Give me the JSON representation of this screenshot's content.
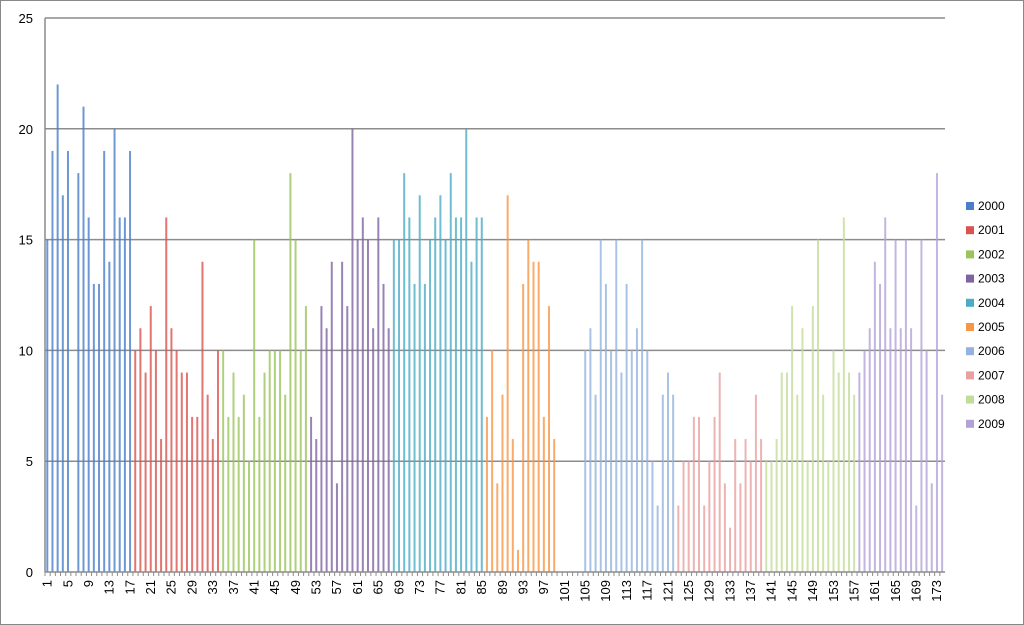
{
  "chart_data": {
    "type": "bar",
    "title": "",
    "xlabel": "",
    "ylabel": "",
    "ylim": [
      0,
      25
    ],
    "yticks": [
      0,
      5,
      10,
      15,
      20,
      25
    ],
    "x_range": [
      1,
      174
    ],
    "x_tick_step": 4,
    "grid": true,
    "legend": "right",
    "series": [
      {
        "name": "2000",
        "color": "#4a7ec9",
        "start": 1,
        "values": [
          15,
          19,
          22,
          17,
          19,
          0,
          18,
          21,
          16,
          13,
          13,
          19,
          14,
          20,
          16,
          16,
          19
        ]
      },
      {
        "name": "2001",
        "color": "#d9534f",
        "start": 18,
        "values": [
          10,
          11,
          9,
          12,
          10,
          6,
          16,
          11,
          10,
          9,
          9,
          7,
          7,
          14,
          8,
          6,
          10
        ]
      },
      {
        "name": "2002",
        "color": "#9bc45a",
        "start": 35,
        "values": [
          10,
          7,
          9,
          7,
          8,
          5,
          15,
          7,
          9,
          10,
          10,
          10,
          8,
          18,
          15,
          10,
          12
        ]
      },
      {
        "name": "2003",
        "color": "#8064a2",
        "start": 52,
        "values": [
          7,
          6,
          12,
          11,
          14,
          4,
          14,
          12,
          20,
          15,
          16,
          15,
          11,
          16,
          13,
          11
        ]
      },
      {
        "name": "2004",
        "color": "#4bacc6",
        "start": 68,
        "values": [
          15,
          15,
          18,
          16,
          13,
          17,
          13,
          15,
          16,
          17,
          15,
          18,
          16,
          16,
          20,
          14,
          16,
          16
        ]
      },
      {
        "name": "2005",
        "color": "#f79646",
        "start": 86,
        "values": [
          7,
          10,
          4,
          8,
          17,
          6,
          1,
          13,
          15,
          14,
          14,
          7,
          12,
          6
        ]
      },
      {
        "name": "2006",
        "color": "#95b3e0",
        "start": 105,
        "values": [
          10,
          11,
          8,
          15,
          13,
          10,
          15,
          9,
          13,
          10,
          11,
          15,
          10,
          5,
          3,
          8,
          9,
          8
        ]
      },
      {
        "name": "2007",
        "color": "#e8a0a0",
        "start": 123,
        "values": [
          3,
          5,
          5,
          7,
          7,
          3,
          5,
          7,
          9,
          4,
          2,
          6,
          4,
          6,
          5,
          8,
          6
        ]
      },
      {
        "name": "2008",
        "color": "#c3dc9a",
        "start": 140,
        "values": [
          5,
          5,
          6,
          9,
          9,
          12,
          8,
          11,
          5,
          12,
          15,
          8,
          5,
          10,
          9,
          16,
          9,
          8
        ]
      },
      {
        "name": "2009",
        "color": "#b3a2d7",
        "start": 158,
        "values": [
          9,
          10,
          11,
          14,
          13,
          16,
          11,
          15,
          11,
          15,
          11,
          3,
          15,
          10,
          4,
          18,
          8
        ]
      }
    ]
  }
}
